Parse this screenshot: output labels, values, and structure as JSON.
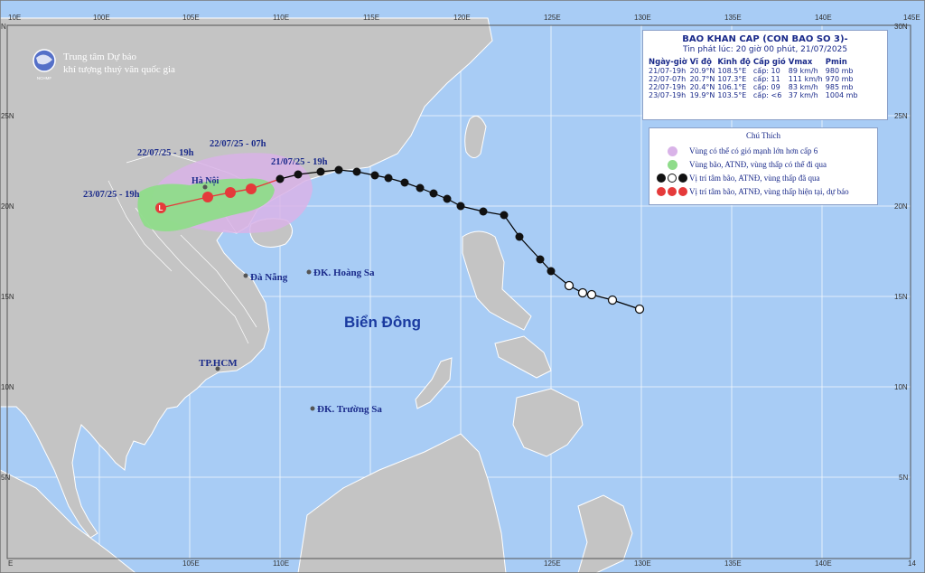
{
  "colors": {
    "sea": "#a8ccf5",
    "land": "#c4c4c4",
    "border": "#ffffff",
    "wind6": "#d9b3e8",
    "danger": "#8fdc8a",
    "track_past": "#000000",
    "track_forecast": "#e53a3a"
  },
  "agency": {
    "line1": "Trung tâm Dự báo",
    "line2": "khí tượng thuỷ văn quốc gia",
    "logo_text": "NCHMF"
  },
  "grid": {
    "lon_top": [
      "10E",
      "100E",
      "105E",
      "110E",
      "115E",
      "120E",
      "125E",
      "130E",
      "135E",
      "140E",
      "145E"
    ],
    "lon_bottom": [
      "E",
      "105E",
      "110E",
      "125E",
      "130E",
      "135E",
      "140E",
      "14"
    ],
    "lat_left": [
      "N",
      "25N",
      "20N",
      "15N",
      "10N",
      "5N"
    ],
    "lat_right": [
      "30N",
      "25N",
      "20N",
      "15N",
      "10N",
      "5N"
    ]
  },
  "places": {
    "hanoi": "Hà Nội",
    "danang": "Đà Nẵng",
    "hoangsa": "ĐK. Hoàng Sa",
    "hcm": "TP.HCM",
    "truongsa": "ĐK. Trường Sa",
    "sea": "Biển Đông"
  },
  "track_labels": {
    "t1": "21/07/25 - 19h",
    "t2": "22/07/25 - 07h",
    "t3": "22/07/25 - 19h",
    "t4": "23/07/25 - 19h"
  },
  "info": {
    "title": "BAO KHAN CAP (CON BAO SO 3)-",
    "subtitle": "Tin phát lúc: 20 giờ 00 phút, 21/07/2025",
    "headers": [
      "Ngày-giờ",
      "Vĩ độ",
      "Kinh độ",
      "Cấp gió",
      "Vmax",
      "Pmin"
    ],
    "rows": [
      [
        "21/07-19h",
        "20.9°N",
        "108.5°E",
        "cấp: 10",
        "89 km/h",
        "980 mb"
      ],
      [
        "22/07-07h",
        "20.7°N",
        "107.3°E",
        "cấp: 11",
        "111 km/h",
        "970 mb"
      ],
      [
        "22/07-19h",
        "20.4°N",
        "106.1°E",
        "cấp: 09",
        "83 km/h",
        "985 mb"
      ],
      [
        "23/07-19h",
        "19.9°N",
        "103.5°E",
        "cấp: <6",
        "37 km/h",
        "1004 mb"
      ]
    ]
  },
  "legend": {
    "title": "Chú Thích",
    "items": [
      "Vùng có thể có gió mạnh lớn hơn cấp 6",
      "Vùng bão, ATNĐ, vùng thấp có thể đi qua",
      "Vị trí tâm bão, ATNĐ, vùng thấp đã qua",
      "Vị trí tâm bão, ATNĐ, vùng thấp hiện tại, dự báo"
    ]
  }
}
